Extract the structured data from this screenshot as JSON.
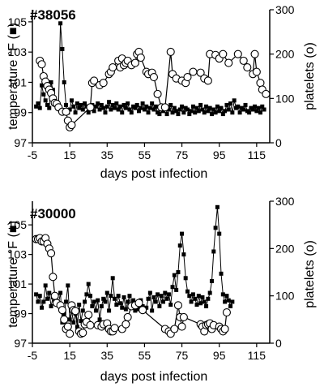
{
  "chart_data": [
    {
      "type": "line",
      "title": "#38056",
      "xlabel": "days post infection",
      "ylabel_left": "temperature °F",
      "ylabel_left_marker": "■",
      "ylabel_right": "platelets",
      "ylabel_right_marker": "(o)",
      "xlim": [
        -5,
        122
      ],
      "xticks": [
        -5,
        15,
        35,
        55,
        75,
        95,
        115
      ],
      "ylim_left": [
        97,
        105.8
      ],
      "yticks_left": [
        97,
        99,
        101,
        103,
        105
      ],
      "ylim_right": [
        0,
        300
      ],
      "yticks_right": [
        0,
        100,
        200,
        300
      ],
      "series": [
        {
          "name": "temperature",
          "axis": "left",
          "marker": "filled-square",
          "x": [
            -3,
            -2,
            -1,
            0,
            1,
            2,
            3,
            4,
            5,
            6,
            7,
            8,
            9,
            10,
            11,
            12,
            13,
            14,
            15,
            16,
            17,
            18,
            19,
            20,
            21,
            22,
            23,
            24,
            25,
            26,
            27,
            28,
            29,
            30,
            31,
            32,
            33,
            34,
            35,
            36,
            37,
            38,
            39,
            40,
            41,
            42,
            43,
            44,
            45,
            46,
            47,
            48,
            49,
            50,
            51,
            52,
            53,
            54,
            55,
            56,
            57,
            58,
            59,
            60,
            61,
            62,
            63,
            64,
            65,
            66,
            67,
            68,
            69,
            70,
            71,
            72,
            73,
            74,
            75,
            76,
            77,
            78,
            79,
            80,
            81,
            82,
            83,
            84,
            85,
            86,
            87,
            88,
            89,
            90,
            91,
            92,
            93,
            94,
            95,
            96,
            97,
            98,
            99,
            100,
            101,
            102,
            103,
            104,
            105,
            106,
            107,
            108,
            109,
            110,
            111,
            112,
            113,
            114,
            115,
            116,
            117,
            118,
            119
          ],
          "y": [
            99.4,
            99.6,
            99.3,
            100.8,
            100.2,
            99.8,
            99.5,
            99.3,
            101.0,
            100.5,
            99.8,
            99.6,
            99.4,
            104.9,
            103.2,
            101.0,
            99.5,
            99.0,
            99.2,
            99.8,
            99.4,
            99.0,
            99.6,
            99.3,
            99.5,
            99.2,
            99.6,
            99.4,
            99.0,
            99.3,
            99.5,
            99.1,
            99.4,
            99.6,
            99.2,
            99.5,
            99.3,
            99.0,
            99.4,
            99.7,
            99.2,
            99.5,
            99.3,
            99.6,
            99.2,
            99.4,
            99.0,
            99.5,
            99.3,
            99.6,
            99.2,
            99.0,
            99.4,
            99.3,
            99.5,
            99.1,
            99.3,
            99.6,
            99.2,
            99.4,
            99.0,
            99.3,
            99.6,
            99.2,
            99.4,
            99.0,
            98.9,
            99.3,
            99.1,
            99.4,
            98.9,
            99.2,
            99.5,
            99.0,
            99.3,
            99.1,
            98.9,
            99.2,
            99.4,
            99.0,
            99.3,
            99.2,
            98.9,
            99.1,
            99.4,
            99.0,
            99.3,
            99.1,
            99.5,
            99.2,
            99.0,
            99.4,
            99.1,
            99.3,
            98.9,
            99.2,
            99.0,
            99.4,
            99.1,
            99.3,
            98.9,
            99.1,
            99.5,
            99.2,
            99.6,
            99.0,
            99.8,
            99.3,
            99.4,
            99.0,
            99.3,
            99.2,
            99.5,
            99.1,
            99.0,
            99.3,
            99.2,
            99.4,
            99.1,
            99.3,
            99.0,
            99.4,
            99.2
          ]
        },
        {
          "name": "platelets",
          "axis": "right",
          "marker": "open-circle",
          "x": [
            -1,
            0,
            1,
            2,
            3,
            4,
            5,
            6,
            7,
            8,
            9,
            11,
            13,
            14,
            15,
            16,
            26,
            27,
            28,
            31,
            33,
            36,
            37,
            38,
            41,
            42,
            43,
            44,
            45,
            46,
            48,
            50,
            51,
            52,
            53,
            56,
            57,
            59,
            60,
            62,
            64,
            66,
            69,
            70,
            72,
            75,
            77,
            78,
            81,
            85,
            87,
            89,
            90,
            93,
            95,
            97,
            100,
            105,
            108,
            110,
            113,
            114,
            115,
            117,
            118,
            120
          ],
          "y": [
            185,
            177,
            150,
            138,
            128,
            120,
            112,
            100,
            90,
            88,
            80,
            70,
            70,
            50,
            35,
            40,
            80,
            135,
            140,
            130,
            135,
            155,
            160,
            170,
            185,
            170,
            190,
            175,
            180,
            185,
            175,
            180,
            200,
            205,
            192,
            160,
            155,
            158,
            148,
            110,
            80,
            80,
            205,
            155,
            145,
            140,
            135,
            148,
            160,
            158,
            145,
            140,
            200,
            198,
            190,
            200,
            180,
            200,
            185,
            170,
            155,
            200,
            160,
            135,
            120,
            110
          ]
        }
      ]
    },
    {
      "type": "line",
      "title": "#30000",
      "xlabel": "days post infection",
      "ylabel_left": "temperature °F",
      "ylabel_left_marker": "■",
      "ylabel_right": "platelets",
      "ylabel_right_marker": "(o)",
      "xlim": [
        -5,
        122
      ],
      "xticks": [
        -5,
        15,
        35,
        55,
        75,
        95,
        115
      ],
      "ylim_left": [
        97,
        106.6
      ],
      "yticks_left": [
        97,
        99,
        101,
        103,
        105
      ],
      "ylim_right": [
        0,
        300
      ],
      "yticks_right": [
        0,
        100,
        200,
        300
      ],
      "series": [
        {
          "name": "temperature",
          "axis": "left",
          "marker": "filled-square",
          "x": [
            -3,
            -2,
            -1,
            0,
            1,
            2,
            3,
            4,
            5,
            6,
            7,
            8,
            9,
            10,
            11,
            12,
            13,
            14,
            15,
            16,
            17,
            18,
            19,
            20,
            21,
            22,
            23,
            24,
            25,
            26,
            27,
            28,
            29,
            30,
            31,
            32,
            33,
            34,
            35,
            36,
            37,
            38,
            39,
            40,
            41,
            42,
            43,
            44,
            45,
            46,
            47,
            48,
            49,
            50,
            51,
            52,
            53,
            54,
            55,
            56,
            57,
            58,
            59,
            60,
            61,
            62,
            63,
            64,
            65,
            66,
            67,
            68,
            69,
            70,
            71,
            72,
            73,
            74,
            75,
            76,
            77,
            78,
            79,
            80,
            81,
            82,
            83,
            84,
            85,
            86,
            87,
            88,
            89,
            90,
            91,
            92,
            93,
            94,
            95,
            96,
            97,
            98,
            99,
            100,
            101,
            102
          ],
          "y": [
            100.3,
            99.8,
            100.2,
            99.4,
            99.8,
            100.9,
            100.0,
            100.4,
            99.5,
            100.1,
            99.8,
            100.2,
            99.7,
            100.4,
            98.4,
            99.0,
            99.8,
            100.9,
            98.6,
            99.2,
            98.4,
            99.0,
            98.1,
            99.6,
            98.5,
            99.2,
            99.8,
            100.3,
            101.0,
            100.2,
            99.5,
            99.8,
            99.2,
            99.9,
            98.6,
            99.5,
            100.0,
            99.8,
            100.4,
            99.2,
            100.2,
            101.4,
            100.0,
            99.6,
            100.2,
            99.7,
            99.4,
            100.1,
            99.3,
            99.8,
            100.2,
            99.5,
            99.9,
            99.2,
            99.6,
            99.3,
            99.9,
            99.5,
            99.2,
            99.4,
            100.0,
            100.4,
            99.2,
            100.1,
            99.8,
            100.3,
            99.5,
            100.2,
            99.8,
            100.4,
            100.0,
            100.3,
            99.6,
            100.8,
            101.6,
            100.6,
            101.8,
            103.6,
            104.4,
            103.0,
            101.4,
            100.5,
            100.2,
            99.8,
            100.3,
            100.0,
            99.6,
            100.2,
            99.7,
            100.1,
            99.8,
            99.5,
            100.0,
            100.4,
            101.2,
            103.2,
            104.8,
            106.2,
            104.4,
            101.7,
            100.3,
            99.8,
            100.2,
            99.9,
            99.5,
            99.8
          ]
        },
        {
          "name": "platelets",
          "axis": "right",
          "marker": "open-circle",
          "x": [
            -3,
            -2,
            -1,
            0,
            1,
            2,
            3,
            4,
            5,
            6,
            7,
            8,
            10,
            11,
            12,
            13,
            14,
            15,
            16,
            17,
            18,
            20,
            21,
            22,
            23,
            24,
            25,
            26,
            30,
            32,
            33,
            35,
            36,
            37,
            38,
            39,
            43,
            45,
            46,
            48,
            50,
            52,
            54,
            66,
            68,
            69,
            71,
            73,
            74,
            75,
            76,
            85,
            86,
            87,
            88,
            89,
            90,
            91,
            92,
            95,
            96,
            97,
            98,
            99
          ],
          "y": [
            220,
            220,
            222,
            215,
            215,
            222,
            210,
            200,
            190,
            140,
            100,
            85,
            80,
            70,
            50,
            30,
            35,
            20,
            80,
            70,
            68,
            25,
            20,
            22,
            40,
            45,
            60,
            38,
            38,
            35,
            40,
            42,
            30,
            25,
            25,
            32,
            30,
            40,
            55,
            78,
            80,
            85,
            70,
            30,
            25,
            20,
            30,
            80,
            55,
            35,
            55,
            40,
            35,
            25,
            38,
            40,
            42,
            30,
            38,
            35,
            30,
            25,
            30,
            65
          ]
        }
      ]
    }
  ]
}
